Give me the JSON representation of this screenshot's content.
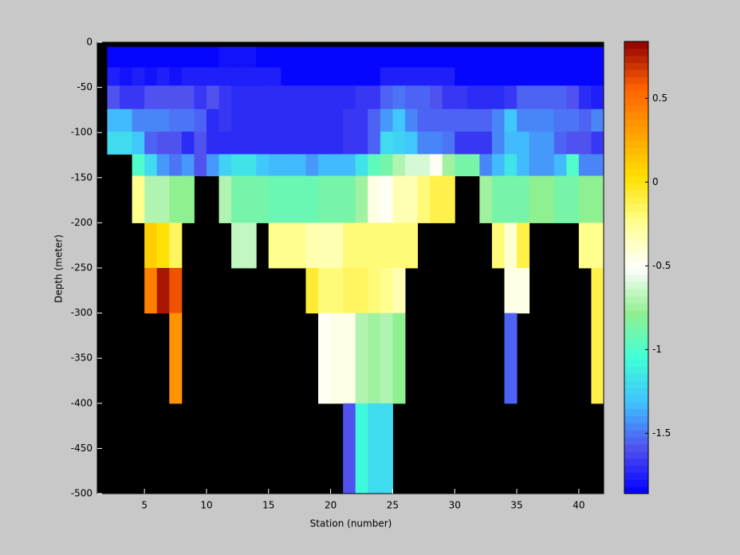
{
  "chart_data": {
    "type": "heatmap",
    "xlabel": "Station (number)",
    "ylabel": "Depth (meter)",
    "x_edges": [
      2,
      3,
      4,
      5,
      6,
      7,
      8,
      9,
      10,
      11,
      12,
      13,
      14,
      15,
      16,
      17,
      18,
      19,
      20,
      21,
      22,
      23,
      24,
      25,
      26,
      27,
      28,
      29,
      30,
      31,
      32,
      33,
      34,
      35,
      36,
      37,
      38,
      39,
      40,
      41,
      42
    ],
    "y_edges": [
      -5,
      -28,
      -48,
      -74,
      -99,
      -124,
      -148,
      -200,
      -250,
      -300,
      -400,
      -500
    ],
    "values": [
      [
        -1.85,
        -1.85,
        -1.85,
        -1.85,
        -1.85,
        -1.85,
        -1.85,
        -1.85,
        -1.85,
        -1.78,
        -1.78,
        -1.78,
        -1.85,
        -1.85,
        -1.85,
        -1.85,
        -1.85,
        -1.85,
        -1.85,
        -1.85,
        -1.85,
        -1.85,
        -1.85,
        -1.85,
        -1.85,
        -1.85,
        -1.85,
        -1.85,
        -1.85,
        -1.85,
        -1.85,
        -1.85,
        -1.85,
        -1.85,
        -1.85,
        -1.85,
        -1.85,
        -1.85,
        -1.85,
        -1.85
      ],
      [
        -1.75,
        -1.8,
        -1.75,
        -1.8,
        -1.75,
        -1.8,
        -1.75,
        -1.75,
        -1.75,
        -1.75,
        -1.75,
        -1.75,
        -1.75,
        -1.75,
        -1.85,
        -1.85,
        -1.85,
        -1.85,
        -1.85,
        -1.85,
        -1.85,
        -1.85,
        -1.75,
        -1.75,
        -1.75,
        -1.75,
        -1.75,
        -1.75,
        -1.85,
        -1.85,
        -1.85,
        -1.85,
        -1.85,
        -1.85,
        -1.85,
        -1.85,
        -1.85,
        -1.85,
        -1.85,
        -1.85
      ],
      [
        -1.6,
        -1.65,
        -1.65,
        -1.6,
        -1.6,
        -1.6,
        -1.6,
        -1.65,
        -1.6,
        -1.65,
        -1.7,
        -1.72,
        -1.72,
        -1.72,
        -1.72,
        -1.72,
        -1.72,
        -1.72,
        -1.72,
        -1.7,
        -1.65,
        -1.65,
        -1.55,
        -1.5,
        -1.55,
        -1.55,
        -1.6,
        -1.65,
        -1.65,
        -1.7,
        -1.7,
        -1.7,
        -1.65,
        -1.55,
        -1.55,
        -1.55,
        -1.55,
        -1.6,
        -1.7,
        -1.75
      ],
      [
        -1.35,
        -1.35,
        -1.45,
        -1.45,
        -1.45,
        -1.5,
        -1.5,
        -1.55,
        -1.7,
        -1.65,
        -1.72,
        -1.72,
        -1.72,
        -1.72,
        -1.72,
        -1.72,
        -1.72,
        -1.72,
        -1.72,
        -1.65,
        -1.65,
        -1.55,
        -1.4,
        -1.3,
        -1.45,
        -1.55,
        -1.55,
        -1.55,
        -1.55,
        -1.55,
        -1.55,
        -1.45,
        -1.3,
        -1.45,
        -1.45,
        -1.45,
        -1.5,
        -1.5,
        -1.55,
        -1.45
      ],
      [
        -1.2,
        -1.2,
        -1.3,
        -1.55,
        -1.6,
        -1.6,
        -1.7,
        -1.6,
        -1.7,
        -1.7,
        -1.7,
        -1.7,
        -1.7,
        -1.7,
        -1.7,
        -1.7,
        -1.7,
        -1.7,
        -1.7,
        -1.65,
        -1.65,
        -1.55,
        -1.2,
        -1.25,
        -1.3,
        -1.45,
        -1.45,
        -1.5,
        -1.65,
        -1.65,
        -1.65,
        -1.45,
        -1.35,
        -1.35,
        -1.4,
        -1.4,
        -1.55,
        -1.6,
        -1.6,
        -1.65
      ],
      [
        null,
        null,
        -1.0,
        -1.2,
        -1.4,
        -1.5,
        -1.4,
        -1.6,
        -1.4,
        -1.25,
        -1.15,
        -1.15,
        -1.3,
        -1.35,
        -1.35,
        -1.35,
        -1.4,
        -1.35,
        -1.35,
        -1.35,
        -1.15,
        -0.95,
        -0.85,
        -0.7,
        -0.6,
        -0.6,
        -0.5,
        -0.75,
        -0.85,
        -0.85,
        -1.45,
        -1.35,
        -1.15,
        -1.35,
        -1.4,
        -1.4,
        -1.35,
        -1.0,
        -1.45,
        -1.45
      ],
      [
        null,
        null,
        -0.25,
        -0.7,
        -0.7,
        -0.8,
        -0.8,
        null,
        null,
        -0.7,
        -0.85,
        -0.85,
        -0.85,
        -0.9,
        -0.9,
        -0.9,
        -0.9,
        -0.85,
        -0.85,
        -0.85,
        -0.75,
        -0.45,
        -0.5,
        -0.3,
        -0.3,
        -0.2,
        -0.1,
        -0.1,
        null,
        null,
        -0.75,
        -0.85,
        -0.85,
        -0.85,
        -0.8,
        -0.8,
        -0.85,
        -0.85,
        -0.8,
        -0.8
      ],
      [
        null,
        null,
        null,
        0.1,
        0,
        -0.15,
        null,
        null,
        null,
        null,
        -0.65,
        -0.65,
        null,
        -0.25,
        -0.25,
        -0.25,
        -0.3,
        -0.3,
        -0.3,
        -0.2,
        -0.2,
        -0.2,
        -0.2,
        -0.2,
        -0.2,
        null,
        null,
        null,
        null,
        null,
        null,
        -0.2,
        -0.4,
        -0.1,
        null,
        null,
        null,
        null,
        -0.25,
        -0.25
      ],
      [
        null,
        null,
        null,
        0.45,
        0.78,
        0.6,
        null,
        null,
        null,
        null,
        null,
        null,
        null,
        null,
        null,
        null,
        -0.05,
        -0.2,
        -0.2,
        -0.15,
        -0.15,
        -0.2,
        -0.25,
        -0.3,
        null,
        null,
        null,
        null,
        null,
        null,
        null,
        null,
        -0.45,
        -0.45,
        null,
        null,
        null,
        null,
        null,
        -0.1
      ],
      [
        null,
        null,
        null,
        null,
        null,
        0.35,
        null,
        null,
        null,
        null,
        null,
        null,
        null,
        null,
        null,
        null,
        null,
        -0.5,
        -0.45,
        -0.45,
        -0.7,
        -0.75,
        -0.7,
        -0.8,
        null,
        null,
        null,
        null,
        null,
        null,
        null,
        null,
        -1.55,
        null,
        null,
        null,
        null,
        null,
        null,
        -0.1
      ],
      [
        null,
        null,
        null,
        null,
        null,
        null,
        null,
        null,
        null,
        null,
        null,
        null,
        null,
        null,
        null,
        null,
        null,
        null,
        null,
        -1.6,
        -1.1,
        -1.2,
        -1.2,
        null,
        null,
        null,
        null,
        null,
        null,
        null,
        null,
        null,
        null,
        null,
        null,
        null,
        null,
        null,
        null,
        null
      ]
    ],
    "xlim": [
      1.2,
      42
    ],
    "ylim": [
      -500,
      0
    ],
    "xticks": [
      5,
      10,
      15,
      20,
      25,
      30,
      35,
      40
    ],
    "yticks": [
      0,
      -50,
      -100,
      -150,
      -200,
      -250,
      -300,
      -350,
      -400,
      -450,
      -500
    ],
    "clim": [
      -1.86,
      0.84
    ],
    "cticks": [
      -1.5,
      -1,
      -0.5,
      0,
      0.5
    ],
    "colormap": [
      "#0000ff",
      "#5050f0",
      "#40c0ff",
      "#40ffd8",
      "#90f090",
      "#ffffff",
      "#ffff90",
      "#ffe000",
      "#ffa000",
      "#ff6000",
      "#900000"
    ],
    "background": "#000000"
  }
}
